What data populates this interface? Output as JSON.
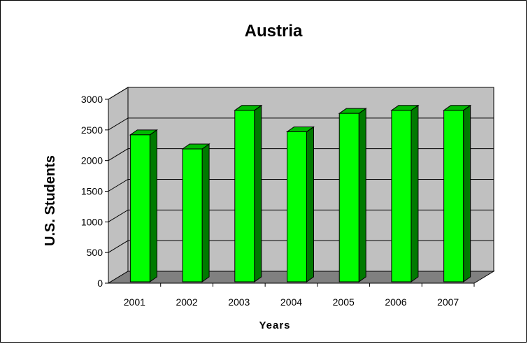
{
  "chart_data": {
    "type": "bar",
    "title": "Austria",
    "xlabel": "Years",
    "ylabel": "U.S. Students",
    "categories": [
      "2001",
      "2002",
      "2003",
      "2004",
      "2005",
      "2006",
      "2007"
    ],
    "values": [
      2420,
      2190,
      2820,
      2470,
      2770,
      2820,
      2820
    ],
    "ylim": [
      0,
      3000
    ],
    "yticks": [
      "0",
      "500",
      "1000",
      "1500",
      "2000",
      "2500",
      "3000"
    ],
    "grid": true,
    "legend": "none",
    "colors": {
      "bar_front": "#00ff00",
      "bar_side": "#007a00",
      "bar_top": "#00b800",
      "wall": "#c0c0c0",
      "floor": "#808080"
    }
  }
}
